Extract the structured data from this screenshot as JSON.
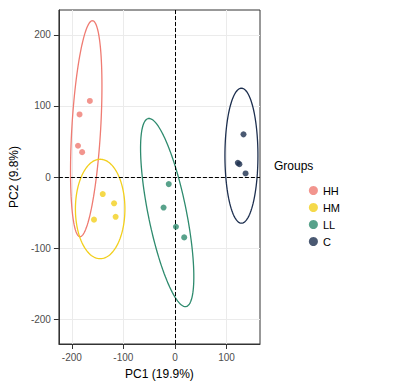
{
  "chart_data": {
    "type": "scatter",
    "x_label": "PC1 (19.9%)",
    "y_label": "PC2 (9.8%)",
    "xlim": [
      -225,
      165
    ],
    "ylim": [
      -235,
      235
    ],
    "xticks": [
      -200,
      -100,
      0,
      100
    ],
    "yticks": [
      -200,
      -100,
      0,
      100,
      200
    ],
    "grid": true,
    "legend": "right",
    "legend_title": "Groups",
    "marker": "circle",
    "vlines": [
      0
    ],
    "hlines": [
      0
    ],
    "series": [
      {
        "name": "HH",
        "color": "#ef7b72",
        "x": [
          -165,
          -185,
          -188,
          -180
        ],
        "values": [
          107,
          88,
          44,
          35
        ],
        "ellipse": {
          "center": [
            -172,
            68
          ],
          "axis_a": [
            12,
            152
          ],
          "axis_b": [
            28,
            0
          ]
        }
      },
      {
        "name": "HM",
        "color": "#f2cf1d",
        "x": [
          -140,
          -118,
          -115,
          -157
        ],
        "values": [
          -24,
          -37,
          -56,
          -60
        ],
        "ellipse": {
          "center": [
            -145,
            -45
          ],
          "axis_a": [
            48,
            0
          ],
          "axis_b": [
            0,
            70
          ]
        }
      },
      {
        "name": "LL",
        "color": "#2e8b6e",
        "x": [
          -12,
          -22,
          2,
          18
        ],
        "values": [
          -10,
          -43,
          -70,
          -85
        ],
        "ellipse": {
          "center": [
            -15,
            -50
          ],
          "axis_a": [
            -38,
            132
          ],
          "axis_b": [
            35,
            10
          ]
        }
      },
      {
        "name": "C",
        "color": "#1d2f4f",
        "x": [
          122,
          125,
          133,
          137
        ],
        "values": [
          20,
          18,
          60,
          5
        ],
        "ellipse": {
          "center": [
            129,
            30
          ],
          "axis_a": [
            0,
            95
          ],
          "axis_b": [
            32,
            0
          ]
        }
      }
    ]
  }
}
